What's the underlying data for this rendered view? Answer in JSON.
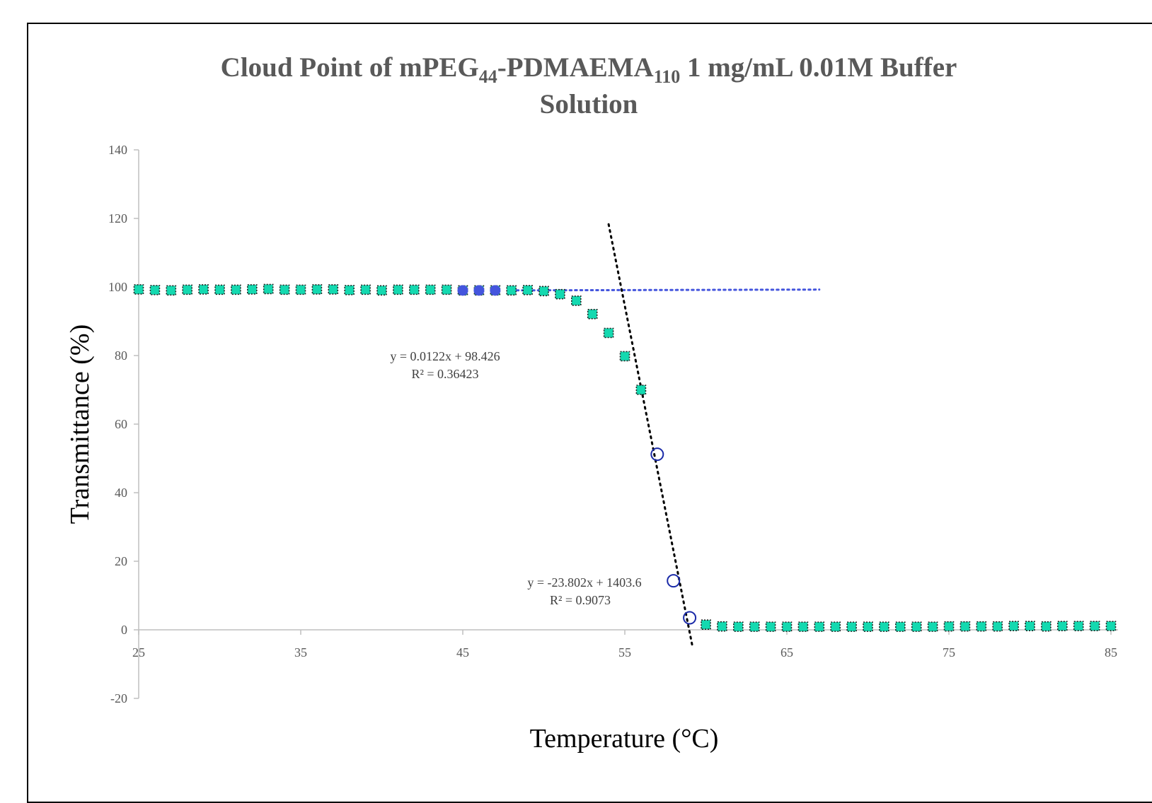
{
  "chart_data": {
    "type": "scatter",
    "title": "Cloud Point of mPEG44-PDMAEMA110 1 mg/mL 0.01M Buffer Solution",
    "title_parts": {
      "line1_a": "Cloud Point of mPEG",
      "line1_sub1": "44",
      "line1_b": "-PDMAEMA",
      "line1_sub2": "110",
      "line1_c": " 1 mg/mL 0.01M Buffer",
      "line2": "Solution"
    },
    "xlabel": "Temperature (°C)",
    "ylabel": "Transmittance (%)",
    "xlim": [
      25,
      85
    ],
    "ylim": [
      -20,
      140
    ],
    "x_ticks": [
      25,
      35,
      45,
      55,
      65,
      75,
      85
    ],
    "x_tick_labels": [
      "25",
      "35",
      "45",
      "55",
      "65",
      "75",
      "85"
    ],
    "y_ticks": [
      -20,
      0,
      20,
      40,
      60,
      80,
      100,
      120,
      140
    ],
    "y_tick_labels": [
      "-20",
      "0",
      "20",
      "40",
      "60",
      "80",
      "100",
      "120",
      "140"
    ],
    "grid": false,
    "series": [
      {
        "marker": "square",
        "color": "#14d9b0",
        "x": [
          25,
          26,
          27,
          28,
          29,
          30,
          31,
          32,
          33,
          34,
          35,
          36,
          37,
          38,
          39,
          40,
          41,
          42,
          43,
          44,
          45,
          46,
          47,
          48,
          49,
          50,
          51,
          52,
          53,
          54,
          55,
          56,
          60,
          61,
          62,
          63,
          64,
          65,
          66,
          67,
          68,
          69,
          70,
          71,
          72,
          73,
          74,
          75,
          76,
          77,
          78,
          79,
          80,
          81,
          82,
          83,
          84,
          85
        ],
        "y": [
          99.3,
          99.1,
          99.0,
          99.2,
          99.3,
          99.2,
          99.2,
          99.3,
          99.4,
          99.2,
          99.2,
          99.3,
          99.3,
          99.1,
          99.2,
          99.0,
          99.2,
          99.2,
          99.2,
          99.2,
          99.0,
          99.0,
          99.0,
          99.0,
          99.1,
          98.8,
          97.9,
          96.0,
          92.1,
          86.6,
          79.8,
          70.0,
          1.5,
          1.0,
          0.9,
          0.9,
          0.9,
          0.9,
          0.9,
          0.9,
          0.9,
          0.9,
          0.9,
          0.9,
          0.9,
          0.9,
          0.9,
          1.0,
          1.0,
          1.0,
          1.0,
          1.1,
          1.1,
          1.0,
          1.1,
          1.1,
          1.1,
          1.1
        ]
      },
      {
        "marker": "circle-filled",
        "color": "#4455dd",
        "x": [
          45,
          46,
          47
        ],
        "y": [
          99.0,
          99.0,
          99.0
        ]
      },
      {
        "marker": "circle-open",
        "color": "#1a2aa8",
        "x": [
          57,
          58,
          59
        ],
        "y": [
          51.2,
          14.3,
          3.5
        ]
      }
    ],
    "trendlines": [
      {
        "type": "linear",
        "slope": 0.0122,
        "intercept": 98.426,
        "x_range": [
          48,
          67
        ],
        "color": "#4455dd",
        "equation": "y = 0.0122x + 98.426",
        "r2": "R² = 0.36423"
      },
      {
        "type": "linear",
        "slope": -23.802,
        "intercept": 1403.6,
        "x_range": [
          54,
          59.2
        ],
        "color": "#000000",
        "equation": "y = -23.802x + 1403.6",
        "r2": "R² = 0.9073"
      }
    ]
  }
}
